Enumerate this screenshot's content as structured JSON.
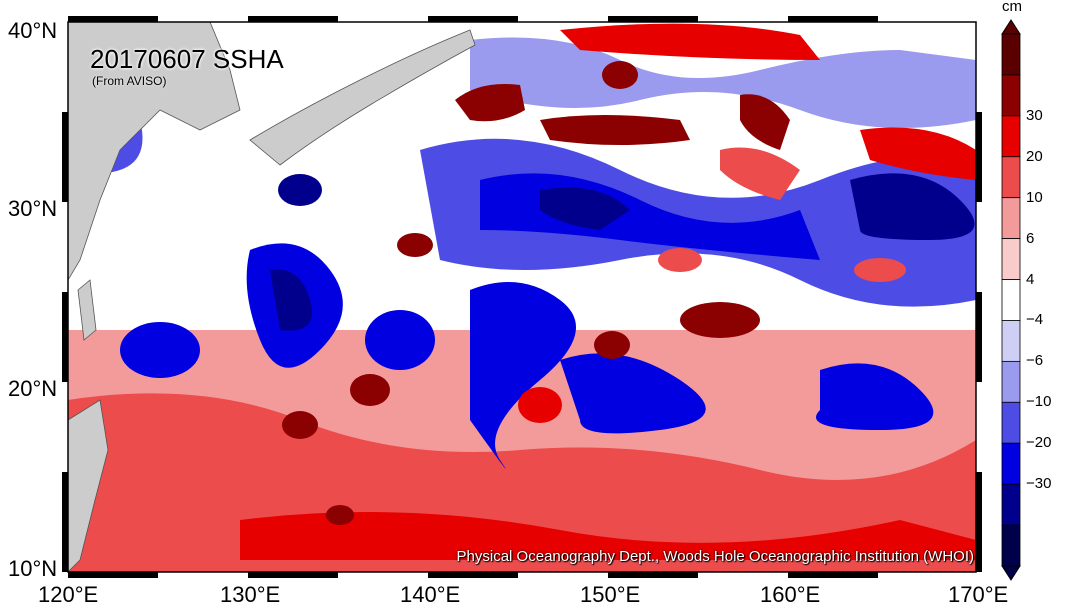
{
  "title": "20170607 SSHA",
  "subtitle": "(From AVISO)",
  "credit": "Physical Oceanography Dept., Woods Hole Oceanographic Institution (WHOI)",
  "colorbar": {
    "unit": "cm",
    "levels": [
      "30",
      "20",
      "10",
      "6",
      "4",
      "−4",
      "−6",
      "−10",
      "−20",
      "−30"
    ],
    "colors": [
      "#5a0000",
      "#8b0000",
      "#e60000",
      "#ec4c4c",
      "#f39a9a",
      "#f9cccc",
      "#ffffff",
      "#cfcff6",
      "#9a9aef",
      "#4d4de6",
      "#0000e0",
      "#00008c",
      "#00004a"
    ]
  },
  "axes": {
    "x_ticks": [
      "120°E",
      "130°E",
      "140°E",
      "150°E",
      "160°E",
      "170°E"
    ],
    "y_ticks": [
      "40°N",
      "30°N",
      "20°N",
      "10°N"
    ]
  },
  "colors": {
    "land": "#cccccc",
    "high": "#e60000",
    "low": "#0000e0"
  }
}
